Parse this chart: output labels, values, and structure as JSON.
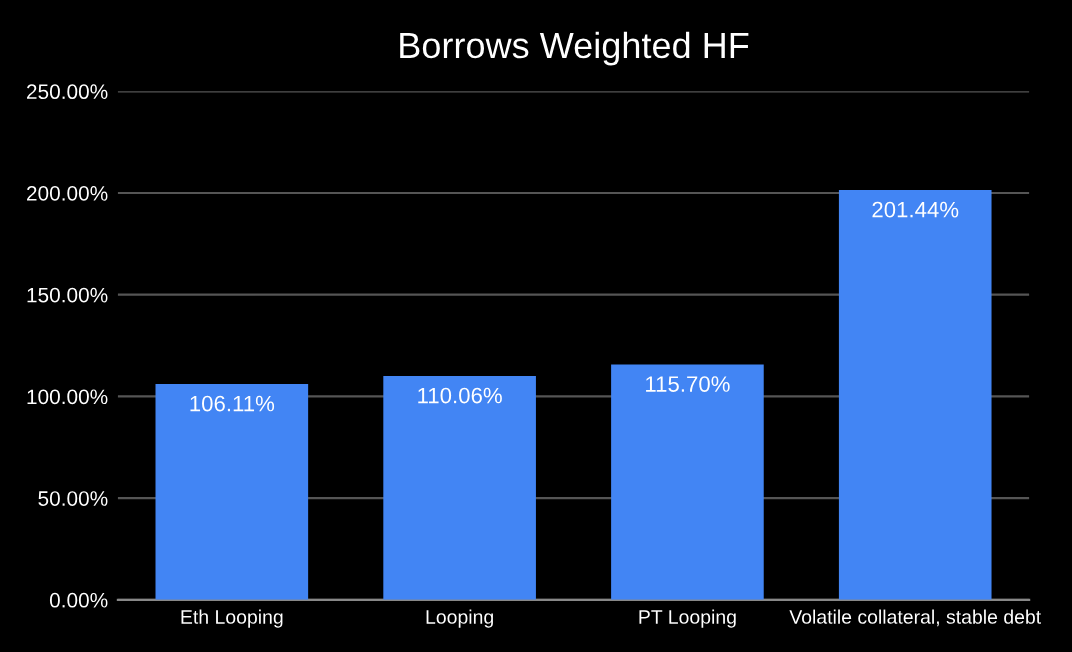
{
  "chart_data": {
    "type": "bar",
    "title": "Borrows Weighted HF",
    "categories": [
      "Eth Looping",
      "Looping",
      "PT Looping",
      "Volatile collateral, stable debt"
    ],
    "values": [
      106.11,
      110.06,
      115.7,
      201.44
    ],
    "value_labels": [
      "106.11%",
      "110.06%",
      "115.70%",
      "201.44%"
    ],
    "color": "#4285f4",
    "ylim": [
      0,
      250
    ],
    "yticks": [
      {
        "value": 0,
        "label": "0.00%"
      },
      {
        "value": 50,
        "label": "50.00%"
      },
      {
        "value": 100,
        "label": "100.00%"
      },
      {
        "value": 150,
        "label": "150.00%"
      },
      {
        "value": 200,
        "label": "200.00%"
      },
      {
        "value": 250,
        "label": "250.00%"
      }
    ],
    "grid": "y",
    "legend": false
  }
}
